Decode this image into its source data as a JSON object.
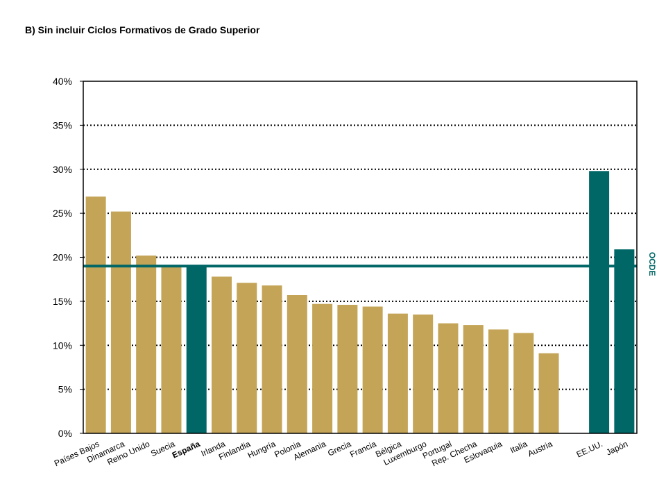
{
  "title": "B) Sin incluir Ciclos Formativos de Grado Superior",
  "colors": {
    "bar": "#C4A457",
    "highlight": "#006666",
    "grid": "#000000"
  },
  "chart_data": {
    "type": "bar",
    "title": "B) Sin incluir Ciclos Formativos de Grado Superior",
    "xlabel": "",
    "ylabel": "",
    "ylim": [
      0,
      40
    ],
    "y_ticks": [
      "0%",
      "5%",
      "10%",
      "15%",
      "20%",
      "25%",
      "30%",
      "35%",
      "40%"
    ],
    "y_tick_values": [
      0,
      5,
      10,
      15,
      20,
      25,
      30,
      35,
      40
    ],
    "grid": "dotted horizontal",
    "categories": [
      "Países Bajos",
      "Dinamarca",
      "Reino Unido",
      "Suecia",
      "España",
      "Irlanda",
      "Finlandia",
      "Hungría",
      "Polonia",
      "Alemania",
      "Grecia",
      "Francia",
      "Bélgica",
      "Luxemburgo",
      "Portugal",
      "Rep. Checha",
      "Eslovaquia",
      "Italia",
      "Austria",
      "",
      "EE.UU.",
      "Japón"
    ],
    "values": [
      26.9,
      25.2,
      20.2,
      19.0,
      19.0,
      17.8,
      17.1,
      16.8,
      15.7,
      14.7,
      14.6,
      14.4,
      13.6,
      13.5,
      12.5,
      12.3,
      11.8,
      11.4,
      9.1,
      null,
      29.8,
      20.9
    ],
    "highlighted": [
      "España",
      "EE.UU.",
      "Japón"
    ],
    "reference_line": {
      "label": "OCDE",
      "value": 19.0
    }
  }
}
